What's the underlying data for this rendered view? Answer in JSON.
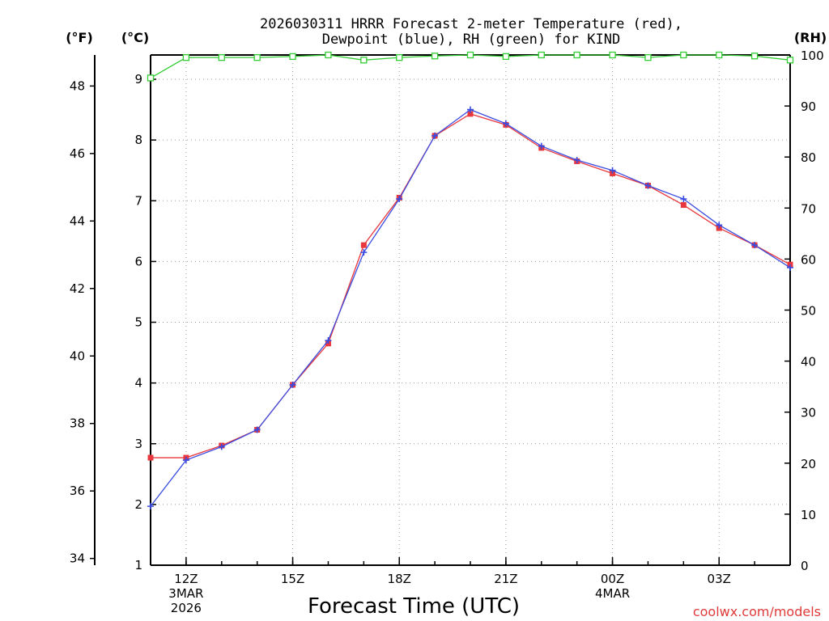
{
  "chart_data": {
    "type": "line",
    "title": [
      "2026030311 HRRR Forecast 2-meter Temperature (red),",
      "Dewpoint (blue), RH (green) for KIND"
    ],
    "xlabel": "Forecast Time (UTC)",
    "credit": "coolwx.com/models",
    "units": {
      "fahrenheit": "(°F)",
      "celsius": "(°C)",
      "rh": "(RH)"
    },
    "x_hours": [
      11,
      12,
      13,
      14,
      15,
      16,
      17,
      18,
      19,
      20,
      21,
      22,
      23,
      24,
      25,
      26,
      27,
      28,
      29
    ],
    "xlim": [
      11,
      29
    ],
    "x_ticks": [
      {
        "hour": 12,
        "lines": [
          "12Z",
          "3MAR",
          "2026"
        ]
      },
      {
        "hour": 15,
        "lines": [
          "15Z"
        ]
      },
      {
        "hour": 18,
        "lines": [
          "18Z"
        ]
      },
      {
        "hour": 21,
        "lines": [
          "21Z"
        ]
      },
      {
        "hour": 24,
        "lines": [
          "00Z",
          "4MAR"
        ]
      },
      {
        "hour": 27,
        "lines": [
          "03Z"
        ]
      }
    ],
    "y_celsius": {
      "range": [
        1,
        9.4
      ],
      "ticks": [
        1,
        2,
        3,
        4,
        5,
        6,
        7,
        8,
        9
      ]
    },
    "y_fahrenheit": {
      "range": [
        33.8,
        48.92
      ],
      "ticks": [
        34,
        36,
        38,
        40,
        42,
        44,
        46,
        48
      ]
    },
    "y_rh": {
      "range": [
        0,
        100
      ],
      "ticks": [
        0,
        10,
        20,
        30,
        40,
        50,
        60,
        70,
        80,
        90,
        100
      ]
    },
    "series": [
      {
        "name": "2-meter Temperature",
        "axis": "celsius",
        "color": "#e8383d",
        "marker": "square",
        "values": [
          2.77,
          2.77,
          2.97,
          3.23,
          3.97,
          4.65,
          6.27,
          7.05,
          8.07,
          8.43,
          8.25,
          7.87,
          7.65,
          7.45,
          7.25,
          6.93,
          6.55,
          6.27,
          5.95
        ]
      },
      {
        "name": "Dewpoint",
        "axis": "celsius",
        "color": "#3a4ce0",
        "marker": "plus",
        "values": [
          1.97,
          2.73,
          2.95,
          3.23,
          3.97,
          4.7,
          6.15,
          7.03,
          8.07,
          8.5,
          8.27,
          7.9,
          7.67,
          7.5,
          7.25,
          7.03,
          6.6,
          6.27,
          5.9
        ]
      },
      {
        "name": "RH",
        "axis": "rh",
        "color": "#33cc33",
        "marker": "open-square",
        "values": [
          95.5,
          99.5,
          99.5,
          99.5,
          99.7,
          100,
          99,
          99.5,
          99.8,
          100,
          99.7,
          100,
          100,
          100,
          99.5,
          100,
          100,
          99.8,
          99
        ]
      }
    ]
  }
}
